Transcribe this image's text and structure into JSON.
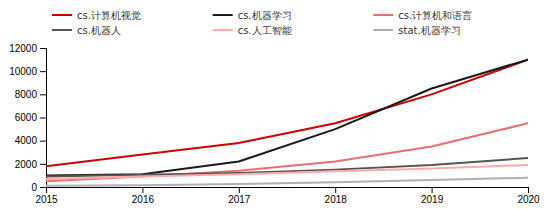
{
  "chart_data": {
    "type": "line",
    "x": [
      2015,
      2016,
      2017,
      2018,
      2019,
      2020
    ],
    "series": [
      {
        "name": "cs.计算机视觉",
        "color": "#cc0000",
        "values": [
          1800,
          2800,
          3800,
          5500,
          8000,
          11000
        ]
      },
      {
        "name": "cs.机器学习",
        "color": "#1a1a1a",
        "values": [
          1000,
          1100,
          2200,
          5000,
          8500,
          11000
        ]
      },
      {
        "name": "cs.计算机和语言",
        "color": "#e87070",
        "values": [
          500,
          900,
          1400,
          2200,
          3500,
          5500
        ]
      },
      {
        "name": "cs.机器人",
        "color": "#555555",
        "values": [
          900,
          1050,
          1200,
          1500,
          1900,
          2500
        ]
      },
      {
        "name": "cs.人工智能",
        "color": "#ffaaaa",
        "values": [
          700,
          900,
          1100,
          1350,
          1600,
          1900
        ]
      },
      {
        "name": "stat.机器学习",
        "color": "#b0b0b0",
        "values": [
          100,
          150,
          250,
          400,
          600,
          800
        ]
      }
    ],
    "xlim": [
      2015,
      2020
    ],
    "xticks": [
      2015,
      2016,
      2017,
      2018,
      2019,
      2020
    ],
    "ylim": [
      0,
      12000
    ],
    "yticks": [
      0,
      2000,
      4000,
      6000,
      8000,
      10000,
      12000
    ],
    "grid": false,
    "legend": "top"
  }
}
